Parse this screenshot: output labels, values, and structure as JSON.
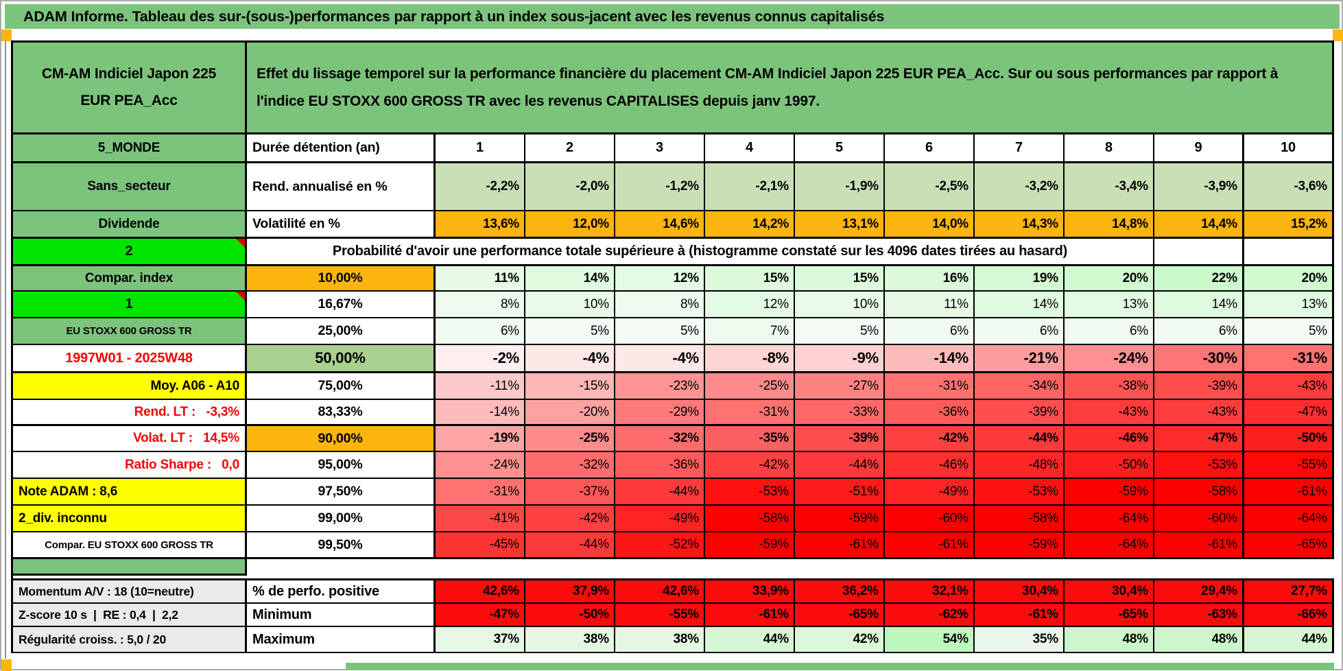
{
  "title": "ADAM Informe. Tableau des sur-(sous-)performances par rapport à un index sous-jacent avec les revenus connus capitalisés",
  "fund": {
    "name_line1": "CM-AM Indiciel Japon 225",
    "name_line2": "EUR PEA_Acc",
    "description": "Effet du lissage temporel sur la performance financière du placement CM-AM Indiciel Japon 225 EUR PEA_Acc. Sur ou sous performances par rapport à l'indice EU STOXX 600 GROSS TR avec les revenus CAPITALISES depuis janv 1997."
  },
  "colors": {
    "header_green": "#7CC47C",
    "bright_green": "#00E400",
    "light_green": "#C9E0B6",
    "median_green": "#A9D08E",
    "orange": "#FCB40E",
    "yellow": "#FFFF00",
    "solid_red": "#FB0C0C",
    "red_text": "#F60000",
    "gray_label": "#EAEAEA"
  },
  "table": {
    "rows": [
      {
        "left": "5_MONDE",
        "label": "Durée détention (an)",
        "values": [
          "1",
          "2",
          "3",
          "4",
          "5",
          "6",
          "7",
          "8",
          "9",
          "10"
        ]
      },
      {
        "left": "Sans_secteur",
        "label": "Rend. annualisé en %",
        "values": [
          "-2,2%",
          "-2,0%",
          "-1,2%",
          "-2,1%",
          "-1,9%",
          "-2,5%",
          "-3,2%",
          "-3,4%",
          "-3,9%",
          "-3,6%"
        ]
      },
      {
        "left": "Dividende",
        "label": "Volatilité en %",
        "values": [
          "13,6%",
          "12,0%",
          "14,6%",
          "14,2%",
          "13,1%",
          "14,0%",
          "14,3%",
          "14,8%",
          "14,4%",
          "15,2%"
        ]
      },
      {
        "left": "2",
        "span": "Probabilité d'avoir une performance totale supérieure à (histogramme constaté sur les 4096 dates tirées au hasard)",
        "values": [
          "",
          ""
        ]
      },
      {
        "left": "Compar. index",
        "label": "10,00%",
        "values": [
          "11%",
          "14%",
          "12%",
          "15%",
          "15%",
          "16%",
          "19%",
          "20%",
          "22%",
          "20%"
        ]
      },
      {
        "left": "1",
        "label": "16,67%",
        "values": [
          "8%",
          "10%",
          "8%",
          "12%",
          "10%",
          "11%",
          "14%",
          "13%",
          "14%",
          "13%"
        ]
      },
      {
        "left": "EU STOXX 600 GROSS TR",
        "label": "25,00%",
        "values": [
          "6%",
          "5%",
          "5%",
          "7%",
          "5%",
          "6%",
          "6%",
          "6%",
          "6%",
          "5%"
        ]
      },
      {
        "left": "1997W01 - 2025W48",
        "label": "50,00%",
        "values": [
          "-2%",
          "-4%",
          "-4%",
          "-8%",
          "-9%",
          "-14%",
          "-21%",
          "-24%",
          "-30%",
          "-31%"
        ]
      },
      {
        "left": "Moy. A06 - A10",
        "label": "75,00%",
        "values": [
          "-11%",
          "-15%",
          "-23%",
          "-25%",
          "-27%",
          "-31%",
          "-34%",
          "-38%",
          "-39%",
          "-43%"
        ]
      },
      {
        "left": "Rend. LT :   -3,3%",
        "label": "83,33%",
        "values": [
          "-14%",
          "-20%",
          "-29%",
          "-31%",
          "-33%",
          "-36%",
          "-39%",
          "-43%",
          "-43%",
          "-47%"
        ]
      },
      {
        "left": "Volat. LT :   14,5%",
        "label": "90,00%",
        "values": [
          "-19%",
          "-25%",
          "-32%",
          "-35%",
          "-39%",
          "-42%",
          "-44%",
          "-46%",
          "-47%",
          "-50%"
        ]
      },
      {
        "left": "Ratio Sharpe :   0,0",
        "label": "95,00%",
        "values": [
          "-24%",
          "-32%",
          "-36%",
          "-42%",
          "-44%",
          "-46%",
          "-48%",
          "-50%",
          "-53%",
          "-55%"
        ]
      },
      {
        "left": "Note ADAM : 8,6",
        "label": "97,50%",
        "values": [
          "-31%",
          "-37%",
          "-44%",
          "-53%",
          "-51%",
          "-49%",
          "-53%",
          "-59%",
          "-58%",
          "-61%"
        ]
      },
      {
        "left": "2_div. inconnu",
        "label": "99,00%",
        "values": [
          "-41%",
          "-42%",
          "-49%",
          "-58%",
          "-59%",
          "-60%",
          "-58%",
          "-64%",
          "-60%",
          "-64%"
        ]
      },
      {
        "left": "Compar. EU STOXX 600 GROSS TR",
        "label": "99,50%",
        "values": [
          "-45%",
          "-44%",
          "-52%",
          "-59%",
          "-61%",
          "-61%",
          "-59%",
          "-64%",
          "-61%",
          "-65%"
        ]
      },
      {
        "left": "Momentum A/V : 18 (10=neutre)",
        "label": "% de perfo. positive",
        "values": [
          "42,6%",
          "37,9%",
          "42,6%",
          "33,9%",
          "36,2%",
          "32,1%",
          "30,4%",
          "30,4%",
          "29,4%",
          "27,7%"
        ]
      },
      {
        "left": "Z-score 10 s  |  RE : 0,4  |  2,2",
        "label": "Minimum",
        "values": [
          "-47%",
          "-50%",
          "-55%",
          "-61%",
          "-65%",
          "-62%",
          "-61%",
          "-65%",
          "-63%",
          "-66%"
        ]
      },
      {
        "left": "Régularité croiss. : 5,0 / 20",
        "label": "Maximum",
        "values": [
          "37%",
          "38%",
          "38%",
          "44%",
          "42%",
          "54%",
          "35%",
          "48%",
          "48%",
          "44%"
        ]
      }
    ]
  }
}
